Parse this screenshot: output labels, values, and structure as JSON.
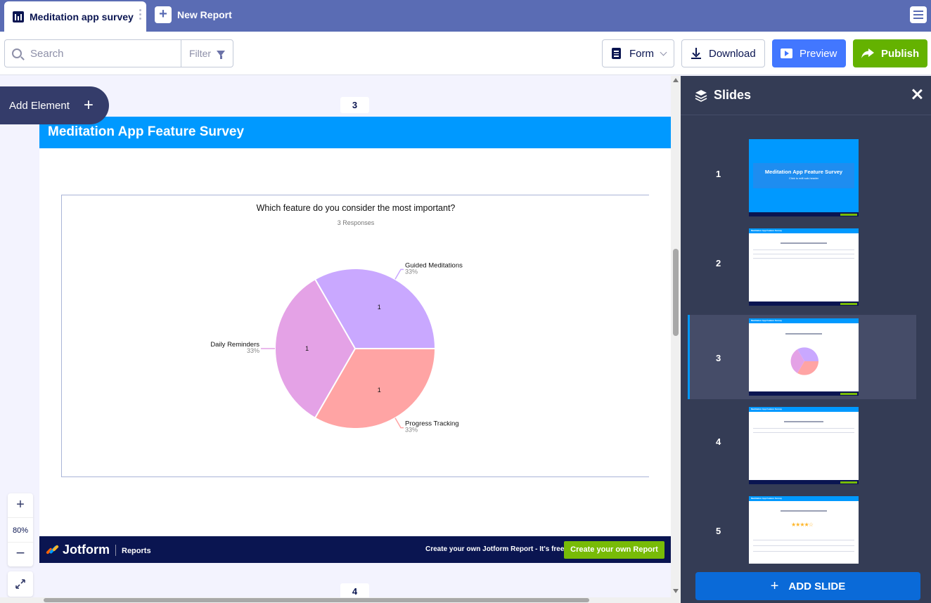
{
  "tabs": {
    "active_title": "Meditation app survey",
    "new_report_label": "New Report"
  },
  "toolbar": {
    "search_placeholder": "Search",
    "filter_label": "Filter",
    "form_label": "Form",
    "download_label": "Download",
    "preview_label": "Preview",
    "publish_label": "Publish"
  },
  "canvas": {
    "add_element_label": "Add Element",
    "page_number_current": "3",
    "page_number_next": "4",
    "zoom_level": "80%"
  },
  "slide": {
    "header_title": "Meditation App Feature Survey",
    "chart_data": {
      "type": "pie",
      "title": "Which feature do you consider the most important?",
      "subtitle": "3 Responses",
      "slices": [
        {
          "label": "Guided Meditations",
          "value": 1,
          "percent": "33%",
          "color": "#c9a8ff"
        },
        {
          "label": "Progress Tracking",
          "value": 1,
          "percent": "33%",
          "color": "#ffa4a4"
        },
        {
          "label": "Daily Reminders",
          "value": 1,
          "percent": "33%",
          "color": "#e4a2e6"
        }
      ]
    },
    "footer": {
      "brand": "Jotform",
      "product": "Reports",
      "cta_text": "Create your own Jotform Report - It's free",
      "cta_button": "Create your own Report"
    }
  },
  "slides_panel": {
    "title": "Slides",
    "items": [
      {
        "number": "1",
        "header": "Meditation App Feature Survey",
        "subheader": "Click to edit sub-header"
      },
      {
        "number": "2",
        "header": "Meditation App Feature Survey"
      },
      {
        "number": "3",
        "header": "Meditation App Feature Survey"
      },
      {
        "number": "4",
        "header": "Meditation App Feature Survey"
      },
      {
        "number": "5",
        "header": "Meditation App Feature Survey"
      }
    ],
    "active_index": 2,
    "add_slide_label": "ADD SLIDE"
  }
}
